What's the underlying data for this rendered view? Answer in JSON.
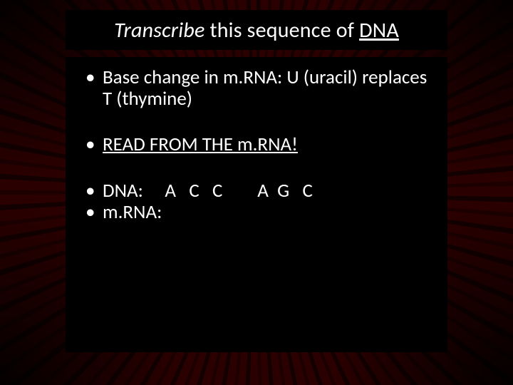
{
  "background": {
    "center_glow": "#fff6d0",
    "inner_yellow": "#ffe070",
    "orange": "#ff7a10",
    "red": "#e83000",
    "dark_red": "#9a0800",
    "edge": "#2a0000",
    "streak_dark": "rgba(0,0,0,0.55)"
  },
  "title": {
    "prefix_italic": "Transcribe",
    "rest": " this sequence of ",
    "underlined": "DNA",
    "box_bg": "#000000",
    "text_color": "#ffffff",
    "font_size_pt": 22
  },
  "content": {
    "box_bg": "#000000",
    "text_color": "#ffffff",
    "font_size_pt": 20,
    "bullets": [
      {
        "type": "text",
        "text": "Base change in m.RNA: U (uracil) replaces T (thymine)"
      },
      {
        "type": "underlined",
        "text": "READ FROM THE m.RNA!"
      },
      {
        "type": "mono",
        "text": "DNA:     A   C   C        A  G   C"
      },
      {
        "type": "mono",
        "text": "m.RNA:"
      }
    ]
  }
}
